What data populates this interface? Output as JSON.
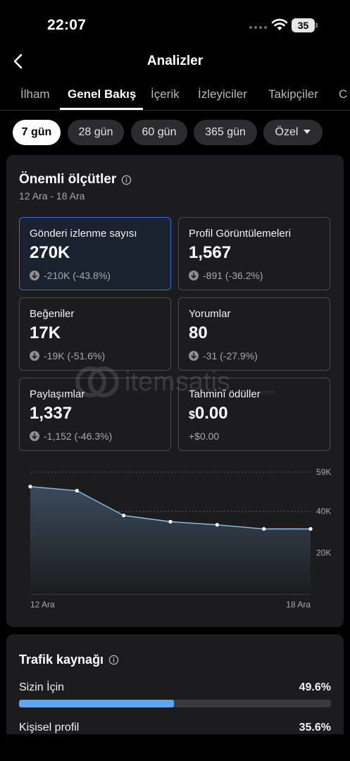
{
  "status_bar": {
    "time": "22:07",
    "battery": "35"
  },
  "header": {
    "title": "Analizler"
  },
  "tabs": [
    {
      "label": "İlham"
    },
    {
      "label": "Genel Bakış",
      "active": true
    },
    {
      "label": "İçerik"
    },
    {
      "label": "İzleyiciler"
    },
    {
      "label": "Takipçiler"
    },
    {
      "label": "C"
    }
  ],
  "period_chips": [
    {
      "label": "7 gün",
      "active": true
    },
    {
      "label": "28 gün"
    },
    {
      "label": "60 gün"
    },
    {
      "label": "365 gün"
    },
    {
      "label": "Özel",
      "dropdown": true
    }
  ],
  "key_metrics": {
    "title": "Önemli ölçütler",
    "date_range": "12 Ara - 18 Ara",
    "tiles": [
      {
        "label": "Gönderi izlenme sayısı",
        "value": "270K",
        "delta": "-210K (-43.8%)",
        "trend": "down",
        "selected": true
      },
      {
        "label": "Profil Görüntülemeleri",
        "value": "1,567",
        "delta": "-891 (-36.2%)",
        "trend": "down"
      },
      {
        "label": "Beğeniler",
        "value": "17K",
        "delta": "-19K (-51.6%)",
        "trend": "down"
      },
      {
        "label": "Yorumlar",
        "value": "80",
        "delta": "-31 (-27.9%)",
        "trend": "down"
      },
      {
        "label": "Paylaşımlar",
        "value": "1,337",
        "delta": "-1,152 (-46.3%)",
        "trend": "down"
      },
      {
        "label": "Tahminî ödüller",
        "currency": "$",
        "value": "0.00",
        "delta": "+$0.00",
        "trend": "none"
      }
    ]
  },
  "watermark": {
    "text": "itemsatis",
    "suffix": ".com"
  },
  "chart_data": {
    "type": "area",
    "series": [
      {
        "values": [
          52,
          50,
          38,
          35,
          33.5,
          31.5,
          31.5
        ]
      }
    ],
    "x_tick_labels": [
      "12 Ara",
      "18 Ara"
    ],
    "y_tick_labels": [
      "59K",
      "40K",
      "20K"
    ],
    "y_ticks": [
      59,
      40,
      20
    ],
    "ylim": [
      0,
      59
    ],
    "grid": true,
    "colors": {
      "line": "#8fc3ea",
      "fill": "#3a4a5c",
      "point": "#ffffff"
    }
  },
  "traffic": {
    "title": "Trafik kaynağı",
    "rows": [
      {
        "label": "Sizin İçin",
        "value": "49.6%",
        "fraction": 0.496
      },
      {
        "label": "Kişisel profil",
        "value": "35.6%",
        "fraction": 0.356
      }
    ]
  },
  "colors": {
    "accent": "#5aa7f5",
    "selected_border": "#2f6fd6",
    "card": "#1c1c1e"
  }
}
